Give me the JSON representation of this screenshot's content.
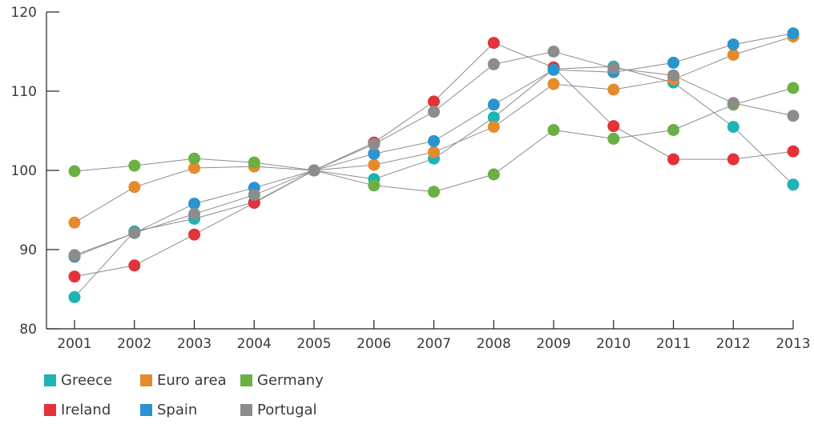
{
  "chart_data": {
    "type": "line",
    "title": "",
    "xlabel": "",
    "ylabel": "",
    "categories": [
      "2001",
      "2002",
      "2003",
      "2004",
      "2005",
      "2006",
      "2007",
      "2008",
      "2009",
      "2010",
      "2011",
      "2012",
      "2013"
    ],
    "ylim": [
      80,
      120
    ],
    "yticks": [
      "80",
      "90",
      "100",
      "110",
      "120"
    ],
    "grid": false,
    "legend_position": "bottom-left",
    "series": [
      {
        "name": "Greece",
        "color": "#1fb3b3",
        "values": [
          84.0,
          92.3,
          93.9,
          96.0,
          100.0,
          98.9,
          101.5,
          106.7,
          112.8,
          113.1,
          111.1,
          105.5,
          98.2
        ]
      },
      {
        "name": "Euro area",
        "color": "#e58b2e",
        "values": [
          93.4,
          97.9,
          100.3,
          100.5,
          100.0,
          100.7,
          102.3,
          105.5,
          110.9,
          110.2,
          111.5,
          114.6,
          116.9
        ]
      },
      {
        "name": "Germany",
        "color": "#6bb043",
        "values": [
          99.9,
          100.6,
          101.5,
          101.0,
          100.0,
          98.1,
          97.3,
          99.5,
          105.1,
          104.0,
          105.1,
          108.3,
          110.4
        ]
      },
      {
        "name": "Ireland",
        "color": "#e3323a",
        "values": [
          86.6,
          88.0,
          91.9,
          95.9,
          100.0,
          103.5,
          108.7,
          116.1,
          113.0,
          105.6,
          101.4,
          101.4,
          102.4
        ]
      },
      {
        "name": "Spain",
        "color": "#2b93cf",
        "values": [
          89.1,
          92.1,
          95.8,
          97.8,
          100.0,
          102.1,
          103.7,
          108.3,
          112.7,
          112.4,
          113.6,
          115.9,
          117.3
        ]
      },
      {
        "name": "Portugal",
        "color": "#8c8c8c",
        "values": [
          89.3,
          92.1,
          94.5,
          96.9,
          100.0,
          103.3,
          107.4,
          113.4,
          115.0,
          112.9,
          112.0,
          108.5,
          106.9
        ]
      }
    ]
  }
}
